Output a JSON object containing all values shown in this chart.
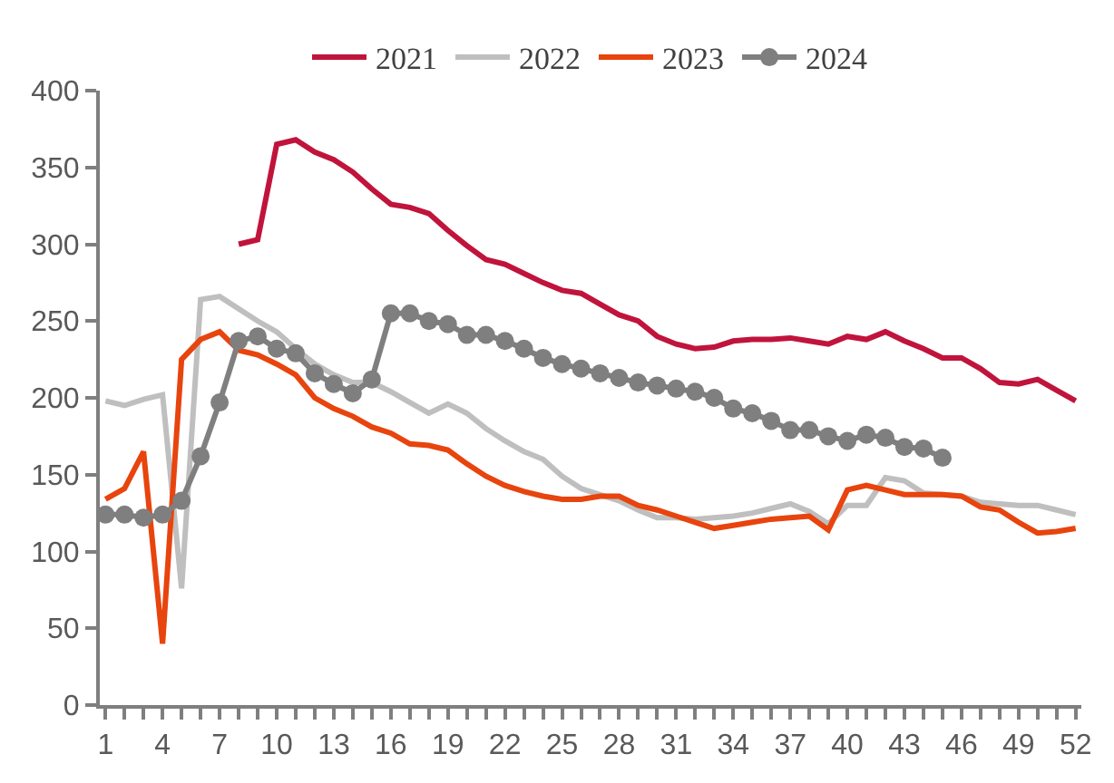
{
  "chart_data": {
    "type": "line",
    "categories": [
      "1",
      null,
      null,
      "4",
      null,
      null,
      "7",
      null,
      null,
      "10",
      null,
      null,
      "13",
      null,
      null,
      "16",
      null,
      null,
      "19",
      null,
      null,
      "22",
      null,
      null,
      "25",
      null,
      null,
      "28",
      null,
      null,
      "31",
      null,
      null,
      "34",
      null,
      null,
      "37",
      null,
      null,
      "40",
      null,
      null,
      "43",
      null,
      null,
      "46",
      null,
      null,
      "49",
      null,
      null,
      "52"
    ],
    "series": [
      {
        "name": "2021",
        "color": "#c0143c",
        "marker": "none",
        "values": [
          null,
          null,
          null,
          null,
          null,
          null,
          null,
          300,
          303,
          365,
          368,
          360,
          355,
          347,
          336,
          326,
          324,
          320,
          309,
          299,
          290,
          287,
          281,
          275,
          270,
          268,
          261,
          254,
          250,
          240,
          235,
          232,
          233,
          237,
          238,
          238,
          239,
          237,
          235,
          240,
          238,
          243,
          237,
          232,
          226,
          226,
          219,
          210,
          209,
          212,
          205,
          198
        ]
      },
      {
        "name": "2022",
        "color": "#bfbfbf",
        "marker": "none",
        "values": [
          198,
          195,
          199,
          202,
          76,
          264,
          266,
          258,
          250,
          243,
          232,
          222,
          215,
          210,
          210,
          204,
          197,
          190,
          196,
          190,
          180,
          172,
          165,
          160,
          149,
          141,
          137,
          133,
          127,
          122,
          122,
          121,
          122,
          123,
          125,
          128,
          131,
          126,
          118,
          130,
          130,
          148,
          146,
          138,
          137,
          136,
          132,
          131,
          130,
          130,
          127,
          124
        ]
      },
      {
        "name": "2023",
        "color": "#e8440e",
        "marker": "none",
        "values": [
          134,
          141,
          165,
          40,
          225,
          238,
          243,
          231,
          228,
          222,
          215,
          200,
          193,
          188,
          181,
          177,
          170,
          169,
          166,
          157,
          149,
          143,
          139,
          136,
          134,
          134,
          136,
          136,
          130,
          127,
          123,
          119,
          115,
          117,
          119,
          121,
          122,
          123,
          114,
          140,
          143,
          140,
          137,
          137,
          137,
          136,
          129,
          127,
          119,
          112,
          113,
          115
        ]
      },
      {
        "name": "2024",
        "color": "#7f7f7f",
        "marker": "circle",
        "values": [
          124,
          124,
          122,
          124,
          133,
          162,
          197,
          237,
          240,
          232,
          229,
          216,
          209,
          203,
          212,
          255,
          255,
          250,
          248,
          241,
          241,
          237,
          232,
          226,
          222,
          219,
          216,
          213,
          210,
          208,
          206,
          204,
          200,
          193,
          190,
          185,
          179,
          179,
          175,
          172,
          176,
          174,
          168,
          167,
          161,
          null,
          null,
          null,
          null,
          null,
          null,
          null
        ]
      }
    ],
    "ylim": [
      0,
      400
    ],
    "yticks": [
      0,
      50,
      100,
      150,
      200,
      250,
      300,
      350,
      400
    ],
    "legend": "top"
  }
}
